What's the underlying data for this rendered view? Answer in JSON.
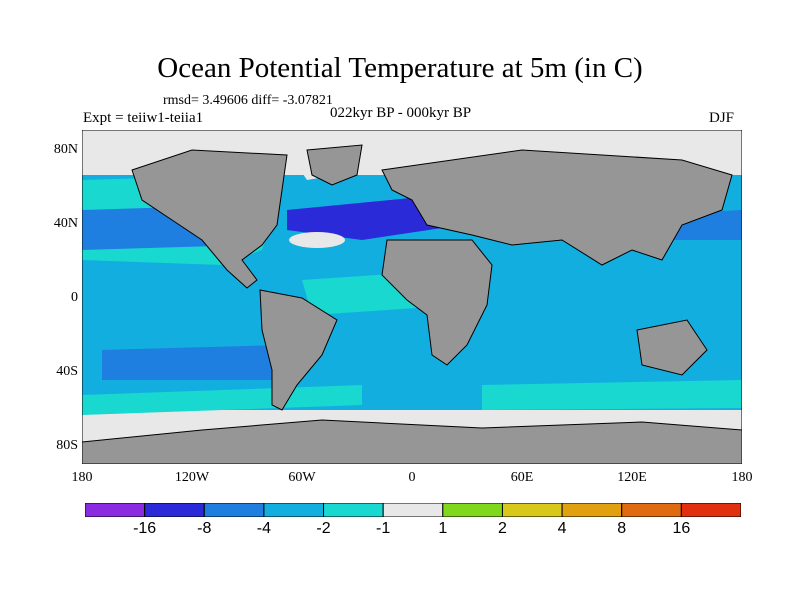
{
  "title": "Ocean Potential Temperature at 5m (in C)",
  "stats_line": "rmsd= 3.49606 diff= -3.07821",
  "experiment_label": "Expt = teiiw1-teiia1",
  "period_label": "022kyr BP - 000kyr BP",
  "season_label": "DJF",
  "lat_ticks": [
    "80N",
    "40N",
    "0",
    "40S",
    "80S"
  ],
  "lon_ticks": [
    "180",
    "120W",
    "60W",
    "0",
    "60E",
    "120E",
    "180"
  ],
  "colorbar": {
    "labels": [
      "-16",
      "-8",
      "-4",
      "-2",
      "-1",
      "1",
      "2",
      "4",
      "8",
      "16"
    ],
    "colors": [
      "#8a2be2",
      "#2a2ad8",
      "#1f7fe0",
      "#13aee0",
      "#18d8d0",
      "#e8e8e8",
      "#7fd81a",
      "#d8c81a",
      "#e0a010",
      "#e06a10",
      "#e03010"
    ]
  },
  "colors": {
    "land": "#969696",
    "ocean_base": "#13aee0",
    "sea_ice": "#e8e8e8"
  }
}
